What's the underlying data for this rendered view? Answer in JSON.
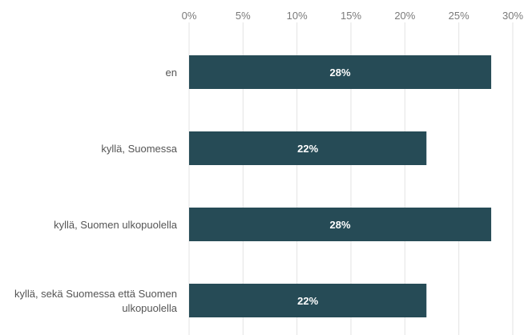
{
  "chart_data": {
    "type": "bar",
    "orientation": "horizontal",
    "categories": [
      "en",
      "kyllä, Suomessa",
      "kyllä, Suomen ulkopuolella",
      "kyllä, sekä Suomessa että Suomen ulkopuolella"
    ],
    "values": [
      28,
      22,
      28,
      22
    ],
    "data_labels": [
      "28%",
      "22%",
      "28%",
      "22%"
    ],
    "x_ticks": [
      "0%",
      "5%",
      "10%",
      "15%",
      "20%",
      "25%",
      "30%"
    ],
    "xlim": [
      0,
      30
    ],
    "grid": true,
    "bar_color": "#264b56",
    "title": "",
    "xlabel": "",
    "ylabel": ""
  }
}
